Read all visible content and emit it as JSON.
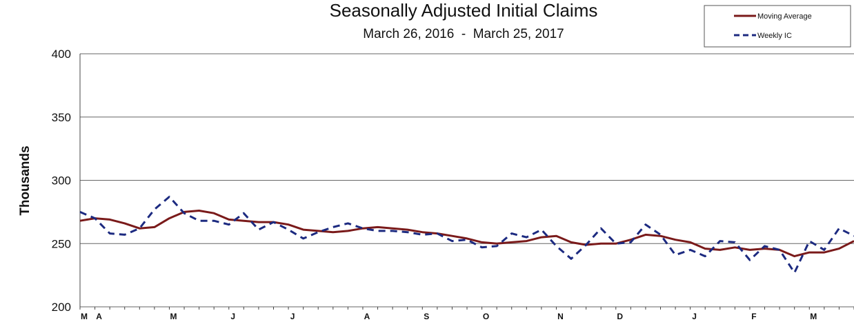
{
  "chart_data": {
    "type": "line",
    "title": "Seasonally Adjusted Initial Claims",
    "subtitle": "March 26, 2016  -  March 25, 2017",
    "ylabel": "Thousands",
    "ylim": [
      200,
      400
    ],
    "yticks": [
      "200",
      "250",
      "300",
      "350",
      "400"
    ],
    "xtick_labels": [
      "M",
      "A",
      "M",
      "J",
      "J",
      "A",
      "S",
      "O",
      "N",
      "D",
      "J",
      "F",
      "M"
    ],
    "grid": true,
    "legend_position": "top-right",
    "series": [
      {
        "name": "Moving Average",
        "color": "#7a1a1a",
        "style": "solid",
        "values": [
          268,
          270,
          269,
          266,
          262,
          263,
          270,
          275,
          276,
          274,
          269,
          268,
          267,
          267,
          265,
          261,
          260,
          259,
          260,
          262,
          263,
          262,
          261,
          259,
          258,
          256,
          254,
          251,
          250,
          251,
          252,
          255,
          256,
          251,
          249,
          250,
          250,
          253,
          257,
          256,
          253,
          251,
          246,
          245,
          247,
          245,
          246,
          245,
          240,
          243,
          243,
          246,
          252
        ]
      },
      {
        "name": "Weekly IC",
        "color": "#1c2a80",
        "style": "dashed",
        "values": [
          275,
          270,
          258,
          257,
          262,
          277,
          287,
          274,
          268,
          268,
          265,
          274,
          261,
          267,
          261,
          254,
          259,
          263,
          266,
          262,
          260,
          260,
          259,
          257,
          258,
          252,
          253,
          247,
          248,
          258,
          255,
          261,
          248,
          238,
          249,
          262,
          250,
          251,
          265,
          257,
          241,
          245,
          240,
          252,
          251,
          237,
          248,
          245,
          227,
          252,
          245,
          262,
          256
        ]
      }
    ]
  }
}
